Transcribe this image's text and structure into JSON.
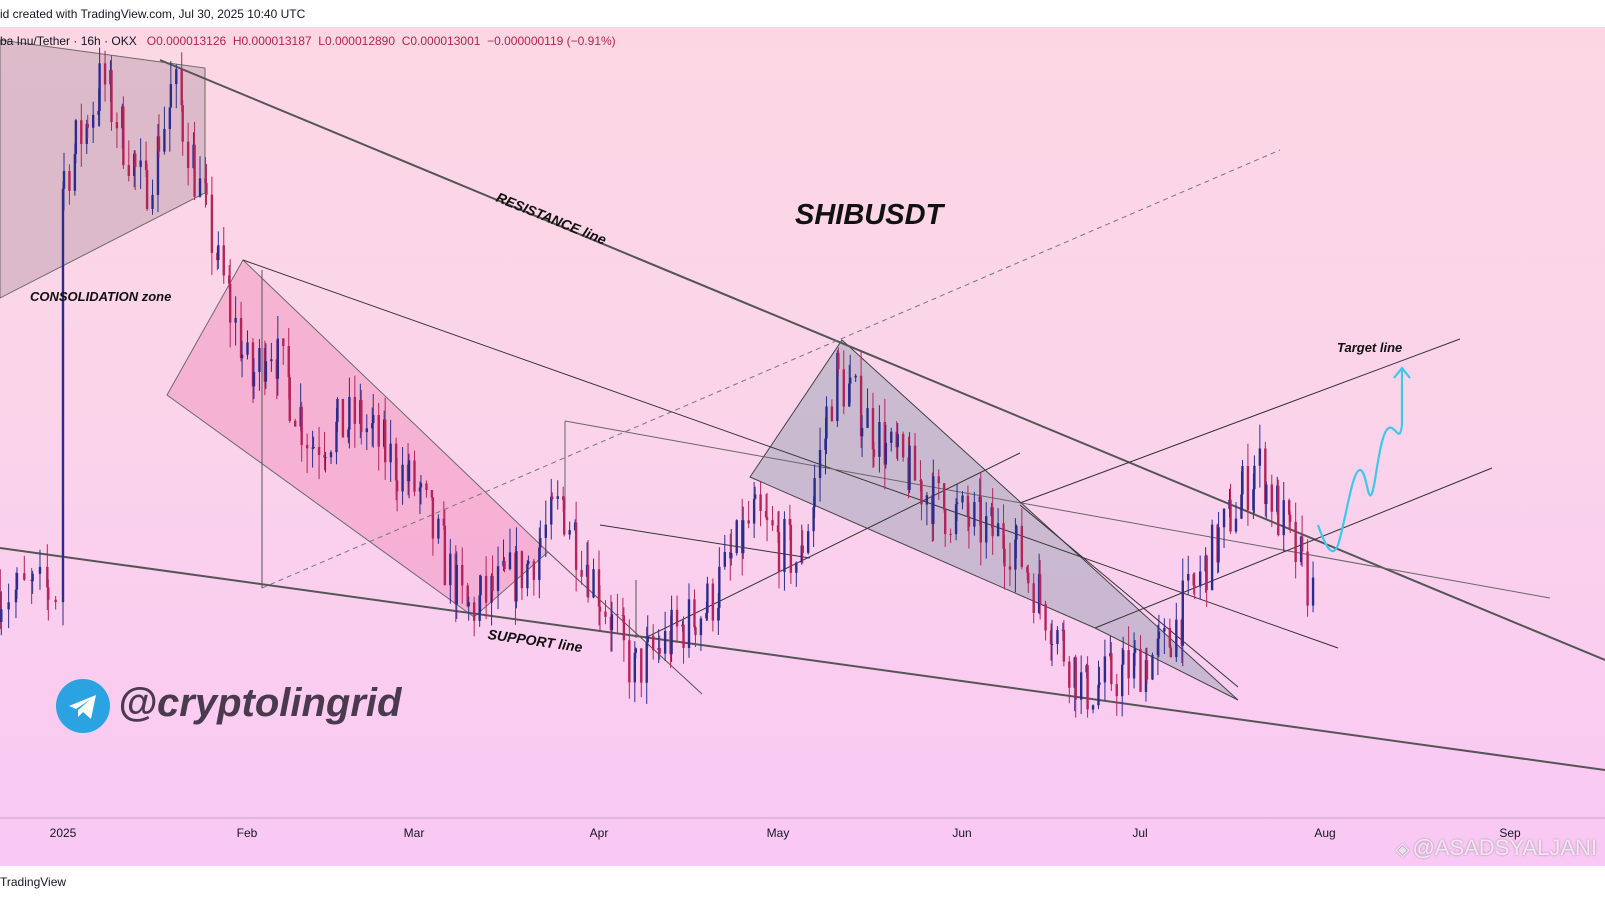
{
  "header": {
    "created_text": "id created with TradingView.com, Jul 30, 2025 10:40 UTC"
  },
  "ohlc": {
    "symbol": "ba Inu/Tether · 16h · OKX",
    "open": "O0.000013126",
    "high": "H0.000013187",
    "low": "L0.000012890",
    "close": "C0.000013001",
    "change": "−0.000000119 (−0.91%)"
  },
  "footer": {
    "brand": "TradingView",
    "watermark": "@ASADSYALJANI"
  },
  "colors": {
    "up_candle": "#2b2d8c",
    "down_candle": "#b3245a",
    "trendline": "#4a4a4a",
    "target_arrow": "#3ec8e8",
    "telegram": "#2aa3e0"
  },
  "chart_data": {
    "type": "candlestick",
    "title": "SHIBUSDT",
    "x_tick_labels": [
      "2025",
      "Feb",
      "Mar",
      "Apr",
      "May",
      "Jun",
      "Jul",
      "Aug",
      "Sep"
    ],
    "annotations": {
      "consolidation": "CONSOLIDATION zone",
      "resistance": "RESISTANCE line",
      "support": "SUPPORT line",
      "target": "Target line",
      "handle": "@cryptolingrid"
    },
    "price_path_approx": [
      [
        "2025-01-01",
        2.12e-05
      ],
      [
        "2025-01-08",
        2.33e-05
      ],
      [
        "2025-01-15",
        2.1e-05
      ],
      [
        "2025-01-20",
        2.32e-05
      ],
      [
        "2025-01-27",
        1.98e-05
      ],
      [
        "2025-02-02",
        1.72e-05
      ],
      [
        "2025-02-05",
        1.81e-05
      ],
      [
        "2025-02-12",
        1.6e-05
      ],
      [
        "2025-02-20",
        1.65e-05
      ],
      [
        "2025-03-02",
        1.5e-05
      ],
      [
        "2025-03-10",
        1.26e-05
      ],
      [
        "2025-03-20",
        1.35e-05
      ],
      [
        "2025-03-26",
        1.48e-05
      ],
      [
        "2025-04-07",
        1.14e-05
      ],
      [
        "2025-04-20",
        1.28e-05
      ],
      [
        "2025-04-27",
        1.45e-05
      ],
      [
        "2025-05-05",
        1.36e-05
      ],
      [
        "2025-05-11",
        1.74e-05
      ],
      [
        "2025-05-20",
        1.58e-05
      ],
      [
        "2025-05-29",
        1.47e-05
      ],
      [
        "2025-06-10",
        1.4e-05
      ],
      [
        "2025-06-22",
        1.1e-05
      ],
      [
        "2025-07-05",
        1.18e-05
      ],
      [
        "2025-07-13",
        1.37e-05
      ],
      [
        "2025-07-21",
        1.56e-05
      ],
      [
        "2025-07-30",
        1.3e-05
      ]
    ]
  }
}
